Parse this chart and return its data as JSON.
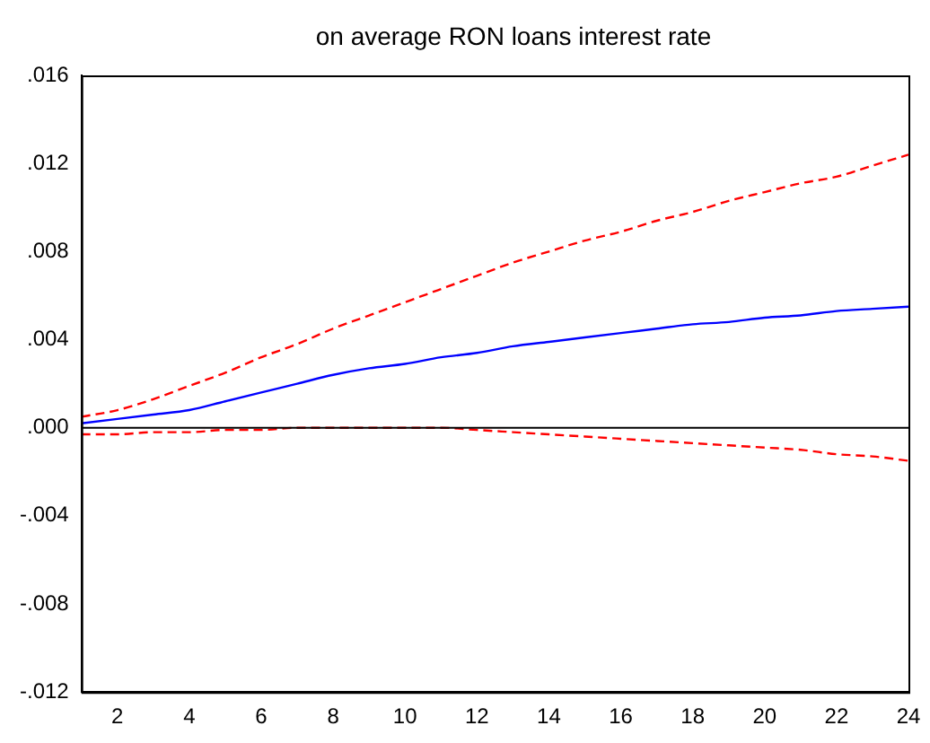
{
  "chart_data": {
    "type": "line",
    "title": "on average RON loans interest rate",
    "x": [
      1,
      2,
      3,
      4,
      5,
      6,
      7,
      8,
      9,
      10,
      11,
      12,
      13,
      14,
      15,
      16,
      17,
      18,
      19,
      20,
      21,
      22,
      23,
      24
    ],
    "xlim": [
      1,
      24
    ],
    "xticks": [
      2,
      4,
      6,
      8,
      10,
      12,
      14,
      16,
      18,
      20,
      22,
      24
    ],
    "series": [
      {
        "color": "#0000ff",
        "line_style": "solid",
        "values": [
          0.0002,
          0.0004,
          0.0006,
          0.0008,
          0.0012,
          0.0016,
          0.002,
          0.0024,
          0.0027,
          0.0029,
          0.0032,
          0.0034,
          0.0037,
          0.0039,
          0.0041,
          0.0043,
          0.0045,
          0.0047,
          0.0048,
          0.005,
          0.0051,
          0.0053,
          0.0054,
          0.0055
        ]
      },
      {
        "color": "#ff0000",
        "line_style": "dashed",
        "values": [
          0.0005,
          0.0008,
          0.0013,
          0.0019,
          0.0025,
          0.0032,
          0.0038,
          0.0045,
          0.0051,
          0.0057,
          0.0063,
          0.0069,
          0.0075,
          0.008,
          0.0085,
          0.0089,
          0.0094,
          0.0098,
          0.0103,
          0.0107,
          0.0111,
          0.0114,
          0.0119,
          0.0124
        ]
      },
      {
        "color": "#ff0000",
        "line_style": "dashed",
        "values": [
          -0.0003,
          -0.0003,
          -0.0002,
          -0.0002,
          -0.0001,
          -0.0001,
          0,
          0,
          0,
          0,
          0,
          -0.0001,
          -0.0002,
          -0.0003,
          -0.0004,
          -0.0005,
          -0.0006,
          -0.0007,
          -0.0008,
          -0.0009,
          -0.001,
          -0.0012,
          -0.0013,
          -0.0015
        ]
      }
    ],
    "ylim": [
      -0.012,
      0.016
    ],
    "yticks": [
      {
        "value": -0.012,
        "label": "-.012"
      },
      {
        "value": -0.008,
        "label": "-.008"
      },
      {
        "value": -0.004,
        "label": "-.004"
      },
      {
        "value": 0,
        "label": ".000"
      },
      {
        "value": 0.004,
        "label": ".004"
      },
      {
        "value": 0.008,
        "label": ".008"
      },
      {
        "value": 0.012,
        "label": ".012"
      },
      {
        "value": 0.016,
        "label": ".016"
      }
    ],
    "ref_lines": [
      {
        "axis": "y",
        "value": 0,
        "color": "#000000"
      }
    ],
    "grid": false,
    "legend": false
  }
}
